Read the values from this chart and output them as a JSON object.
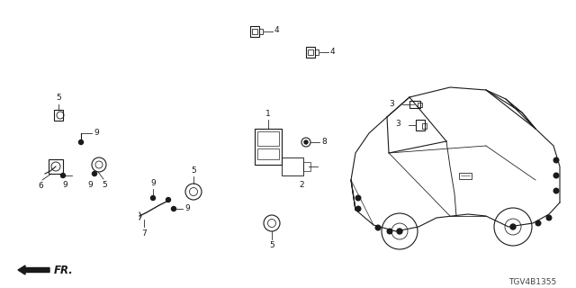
{
  "bg_color": "#ffffff",
  "diagram_code": "TGV4B1355",
  "fr_label": "FR.",
  "line_color": "#1a1a1a",
  "lw": 0.8
}
